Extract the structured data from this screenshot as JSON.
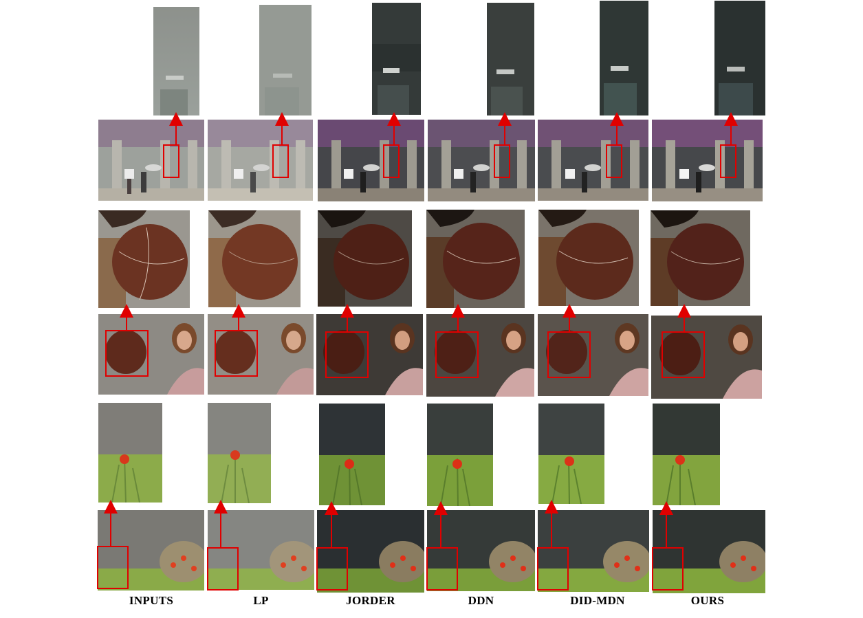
{
  "figure": {
    "columns": [
      {
        "id": "inputs",
        "label": "INPUTS"
      },
      {
        "id": "lp",
        "label": "LP"
      },
      {
        "id": "jorder",
        "label": "JORDER"
      },
      {
        "id": "ddn",
        "label": "DDN"
      },
      {
        "id": "did-mdn",
        "label": "DID-MDN"
      },
      {
        "id": "ours",
        "label": "OURS"
      }
    ],
    "rows": [
      {
        "id": "street-scene",
        "subject": "pedestrians with umbrellas on a rainy street"
      },
      {
        "id": "portrait-scene",
        "subject": "woman beside a basketball in rain"
      },
      {
        "id": "flower-scene",
        "subject": "red flowers on a lawn in rain"
      }
    ],
    "annotation_colors": {
      "box": "#e00000",
      "arrow": "#e00000"
    }
  }
}
